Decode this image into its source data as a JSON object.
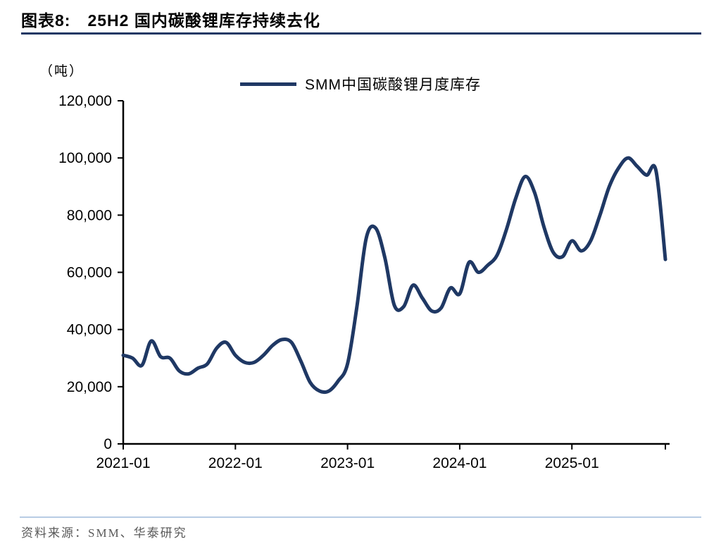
{
  "header": {
    "figure_label": "图表8:",
    "figure_title": "25H2 国内碳酸锂库存持续去化"
  },
  "footer": {
    "source": "资料来源：SMM、华泰研究"
  },
  "theme": {
    "accent": "#1f3864",
    "title_rule": "#1f3864",
    "footer_rule": "#b8cce4",
    "axis_color": "#000000",
    "source_color": "#595959"
  },
  "chart_data": {
    "type": "line",
    "title": "25H2 国内碳酸锂库存持续去化",
    "ylabel": "（吨）",
    "xlabel": "",
    "legend": [
      "SMM中国碳酸锂月度库存"
    ],
    "legend_position": "top",
    "grid": false,
    "line_color": "#1f3864",
    "ylim": [
      0,
      120000
    ],
    "yticks": [
      0,
      20000,
      40000,
      60000,
      80000,
      100000,
      120000
    ],
    "xticks": [
      "2021-01",
      "2022-01",
      "2023-01",
      "2024-01",
      "2025-01"
    ],
    "x": [
      "2021-01",
      "2021-02",
      "2021-03",
      "2021-04",
      "2021-05",
      "2021-06",
      "2021-07",
      "2021-08",
      "2021-09",
      "2021-10",
      "2021-11",
      "2021-12",
      "2022-01",
      "2022-02",
      "2022-03",
      "2022-04",
      "2022-05",
      "2022-06",
      "2022-07",
      "2022-08",
      "2022-09",
      "2022-10",
      "2022-11",
      "2022-12",
      "2023-01",
      "2023-02",
      "2023-03",
      "2023-04",
      "2023-05",
      "2023-06",
      "2023-07",
      "2023-08",
      "2023-09",
      "2023-10",
      "2023-11",
      "2023-12",
      "2024-01",
      "2024-02",
      "2024-03",
      "2024-04",
      "2024-05",
      "2024-06",
      "2024-07",
      "2024-08",
      "2024-09",
      "2024-10",
      "2024-11",
      "2024-12",
      "2025-01",
      "2025-02",
      "2025-03",
      "2025-04",
      "2025-05",
      "2025-06",
      "2025-07",
      "2025-08",
      "2025-09",
      "2025-10",
      "2025-11"
    ],
    "values": [
      31000,
      30000,
      27500,
      36000,
      30500,
      30000,
      25500,
      24500,
      26500,
      28000,
      33500,
      35500,
      31000,
      28500,
      28500,
      31000,
      34500,
      36500,
      35500,
      29000,
      21500,
      18500,
      18500,
      22000,
      28000,
      48000,
      72000,
      75500,
      65000,
      48500,
      48000,
      55500,
      51000,
      46500,
      47500,
      54500,
      52500,
      63500,
      60000,
      62500,
      66000,
      75000,
      86000,
      93500,
      88000,
      76000,
      67000,
      65500,
      71000,
      67500,
      71000,
      80000,
      90000,
      96500,
      100000,
      97000,
      94000,
      95500,
      64500
    ]
  }
}
